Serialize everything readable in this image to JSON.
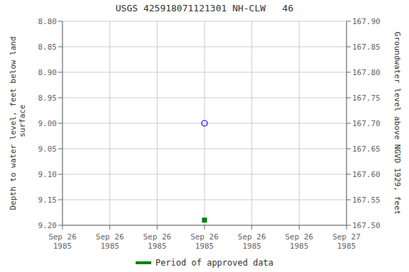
{
  "chart_data": {
    "type": "line",
    "title": "USGS 425918071121301 NH-CLW   46",
    "ylabel": "Depth to water level, feet below land\n surface",
    "y2label": "Groundwater level above NGVD 1929, feet",
    "categories": [
      "Sep 26\n1985",
      "Sep 26\n1985",
      "Sep 26\n1985",
      "Sep 26\n1985",
      "Sep 26\n1985",
      "Sep 26\n1985",
      "Sep 27\n1985"
    ],
    "series": [
      {
        "color": "blue",
        "marker": "open-circle",
        "line_style": "none",
        "values": [
          null,
          null,
          null,
          9.0,
          null,
          null,
          null
        ]
      },
      {
        "name": "Period of approved data",
        "color": "green",
        "marker": "square",
        "line_style": "none",
        "values": [
          null,
          null,
          null,
          9.19,
          null,
          null,
          null
        ]
      }
    ],
    "ylim": [
      9.2,
      8.8
    ],
    "yticks": [
      {
        "value": 8.8,
        "label": "8.80"
      },
      8.85,
      {
        "value": 8.9,
        "label": "8.90"
      },
      8.95,
      {
        "value": 9.0,
        "label": "9.00"
      },
      9.05,
      {
        "value": 9.1,
        "label": "9.10"
      },
      9.15,
      {
        "value": 9.2,
        "label": "9.20"
      }
    ],
    "y2lim": [
      167.5,
      167.9
    ],
    "y2ticks": [
      {
        "value": 167.5,
        "label": "167.50"
      },
      167.55,
      {
        "value": 167.6,
        "label": "167.60"
      },
      167.65,
      {
        "value": 167.7,
        "label": "167.70"
      },
      167.75,
      {
        "value": 167.8,
        "label": "167.80"
      },
      167.85,
      {
        "value": 167.9,
        "label": "167.90"
      }
    ],
    "grid": true,
    "legend": "bottom"
  }
}
